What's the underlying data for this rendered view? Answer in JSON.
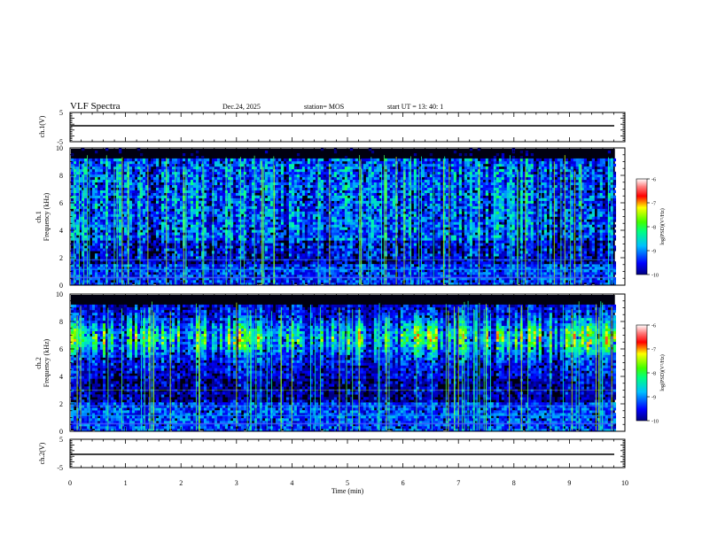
{
  "header": {
    "title": "VLF Spectra",
    "date": "Dec.24, 2025",
    "station": "station= MOS",
    "start": "start  UT =   13: 40: 1"
  },
  "chart_data": [
    {
      "type": "line",
      "id": "ch1_waveform",
      "ylabel": "ch.1(V)",
      "ylim": [
        -5,
        5
      ],
      "yticks": [
        "5",
        "-5"
      ],
      "xlim": [
        0,
        10
      ],
      "series": [
        {
          "name": "ch.1",
          "x": [
            0,
            9.82
          ],
          "values": [
            0,
            0
          ]
        }
      ]
    },
    {
      "type": "heatmap",
      "id": "ch1_spectrogram",
      "ylabel": "Frequency (kHz)",
      "ylabel_prefix": "ch.1",
      "ylim": [
        0,
        10
      ],
      "yticks": [
        "0",
        "2",
        "4",
        "6",
        "8",
        "10"
      ],
      "xlim": [
        0,
        10
      ],
      "data_end_min": 9.82,
      "colorbar": {
        "label": "log(PSD)(V²/Hz)",
        "range": [
          -10,
          -6
        ],
        "ticks": [
          "-6",
          "-7",
          "-8",
          "-9",
          "-10"
        ]
      }
    },
    {
      "type": "heatmap",
      "id": "ch2_spectrogram",
      "ylabel": "Frequency (kHz)",
      "ylabel_prefix": "ch.2",
      "ylim": [
        0,
        10
      ],
      "yticks": [
        "0",
        "2",
        "4",
        "6",
        "8",
        "10"
      ],
      "xlim": [
        0,
        10
      ],
      "data_end_min": 9.82,
      "colorbar": {
        "label": "log(PSD)(V²/Hz)",
        "range": [
          -10,
          -6
        ],
        "ticks": [
          "-6",
          "-7",
          "-8",
          "-9",
          "-10"
        ]
      }
    },
    {
      "type": "line",
      "id": "ch2_waveform",
      "ylabel": "ch.2(V)",
      "ylim": [
        -5,
        5
      ],
      "yticks": [
        "5",
        "-5"
      ],
      "xlim": [
        0,
        10
      ],
      "xlabel": "Time  (min)",
      "xticks": [
        "0",
        "1",
        "2",
        "3",
        "4",
        "5",
        "6",
        "7",
        "8",
        "9",
        "10"
      ],
      "series": [
        {
          "name": "ch.2",
          "x": [
            0,
            9.82
          ],
          "values": [
            0,
            0
          ]
        }
      ]
    }
  ]
}
